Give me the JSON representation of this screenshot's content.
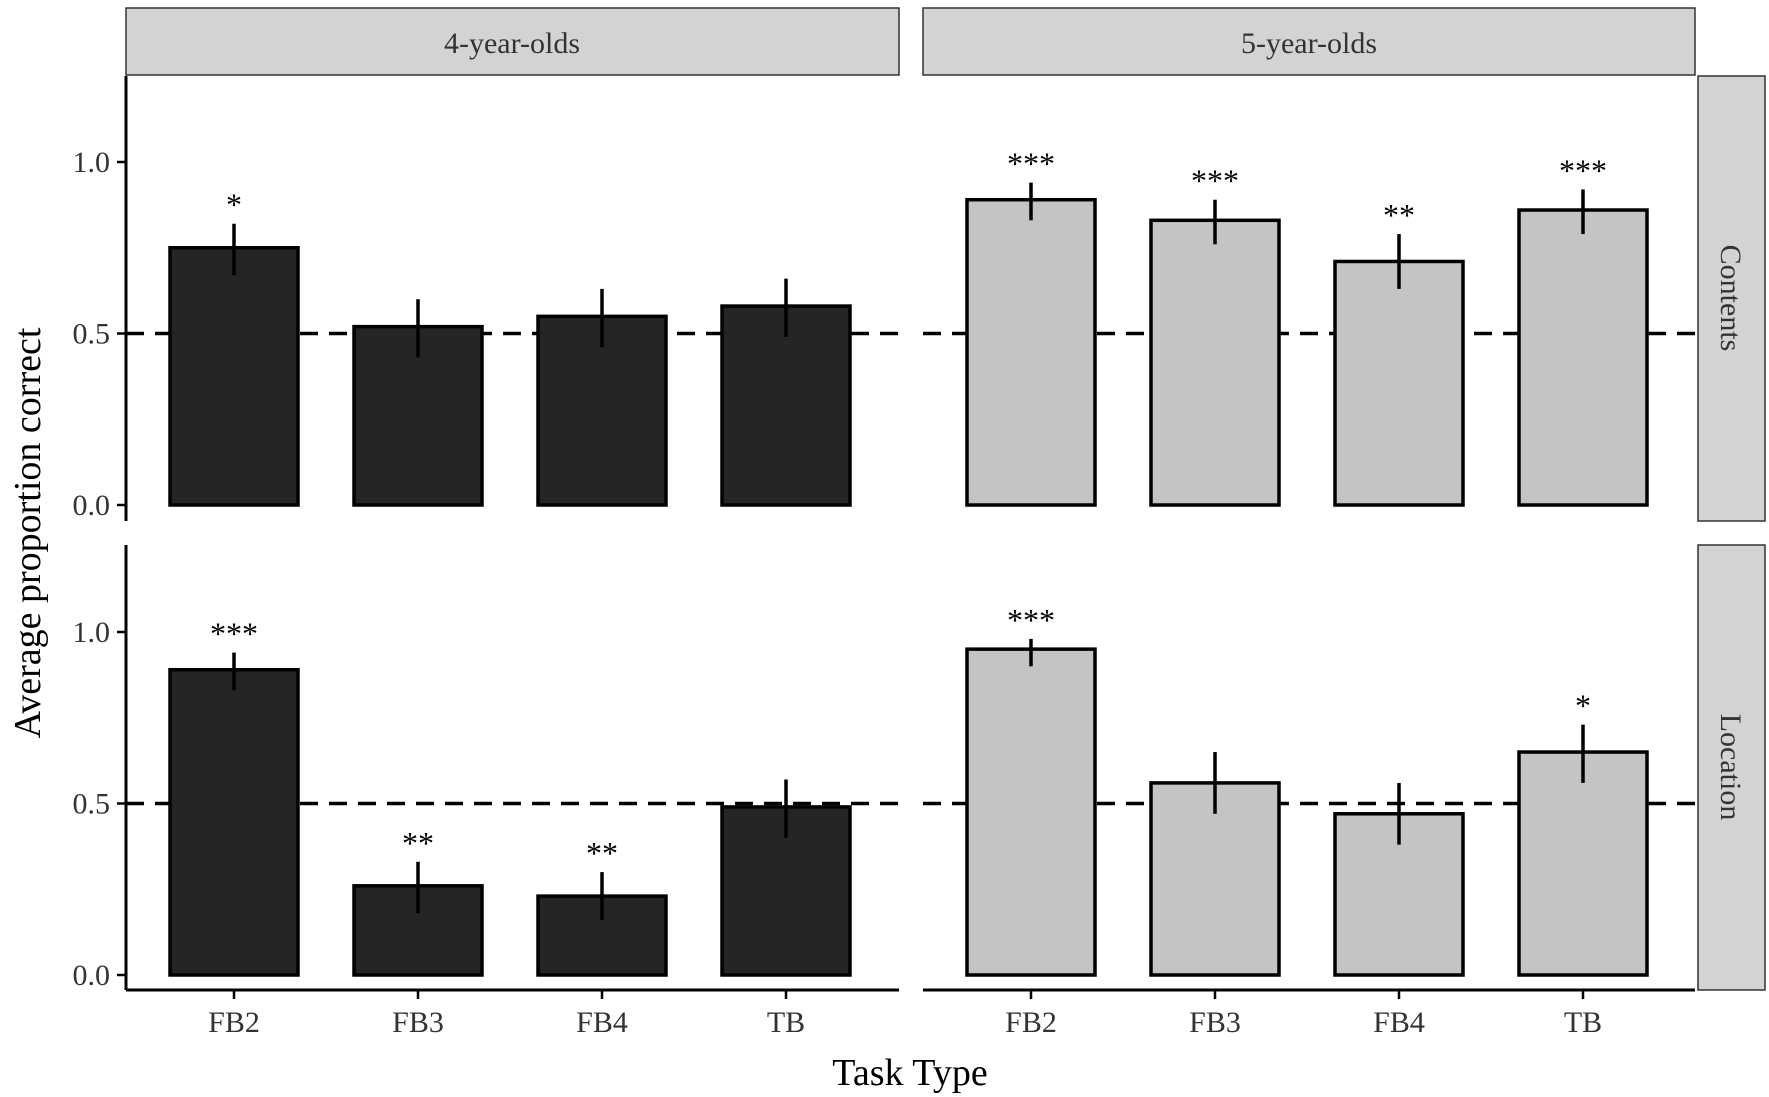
{
  "chart_data": {
    "type": "bar",
    "xlabel": "Task Type",
    "ylabel": "Average proportion correct",
    "categories": [
      "FB2",
      "FB3",
      "FB4",
      "TB"
    ],
    "ylim": [
      0,
      1.25
    ],
    "y_ticks": [
      0.0,
      0.5,
      1.0
    ],
    "y_tick_labels": [
      "0.0",
      "0.5",
      "1.0"
    ],
    "reference_line": 0.5,
    "column_facets": [
      {
        "label": "4-year-olds",
        "fill": "#252525"
      },
      {
        "label": "5-year-olds",
        "fill": "#c4c4c4"
      }
    ],
    "row_facets": [
      {
        "label": "Contents",
        "panels": [
          {
            "age": "4-year-olds",
            "values": [
              0.75,
              0.52,
              0.55,
              0.58
            ],
            "error_low": [
              0.67,
              0.43,
              0.46,
              0.49
            ],
            "error_high": [
              0.82,
              0.6,
              0.63,
              0.66
            ],
            "significance": [
              "*",
              "",
              "",
              ""
            ]
          },
          {
            "age": "5-year-olds",
            "values": [
              0.89,
              0.83,
              0.71,
              0.86
            ],
            "error_low": [
              0.83,
              0.76,
              0.63,
              0.79
            ],
            "error_high": [
              0.94,
              0.89,
              0.79,
              0.92
            ],
            "significance": [
              "***",
              "***",
              "**",
              "***"
            ]
          }
        ]
      },
      {
        "label": "Location",
        "panels": [
          {
            "age": "4-year-olds",
            "values": [
              0.89,
              0.26,
              0.23,
              0.49
            ],
            "error_low": [
              0.83,
              0.18,
              0.16,
              0.4
            ],
            "error_high": [
              0.94,
              0.33,
              0.3,
              0.57
            ],
            "significance": [
              "***",
              "**",
              "**",
              ""
            ]
          },
          {
            "age": "5-year-olds",
            "values": [
              0.95,
              0.56,
              0.47,
              0.65
            ],
            "error_low": [
              0.9,
              0.47,
              0.38,
              0.56
            ],
            "error_high": [
              0.98,
              0.65,
              0.56,
              0.73
            ],
            "significance": [
              "***",
              "",
              "",
              "*"
            ]
          }
        ]
      }
    ]
  }
}
